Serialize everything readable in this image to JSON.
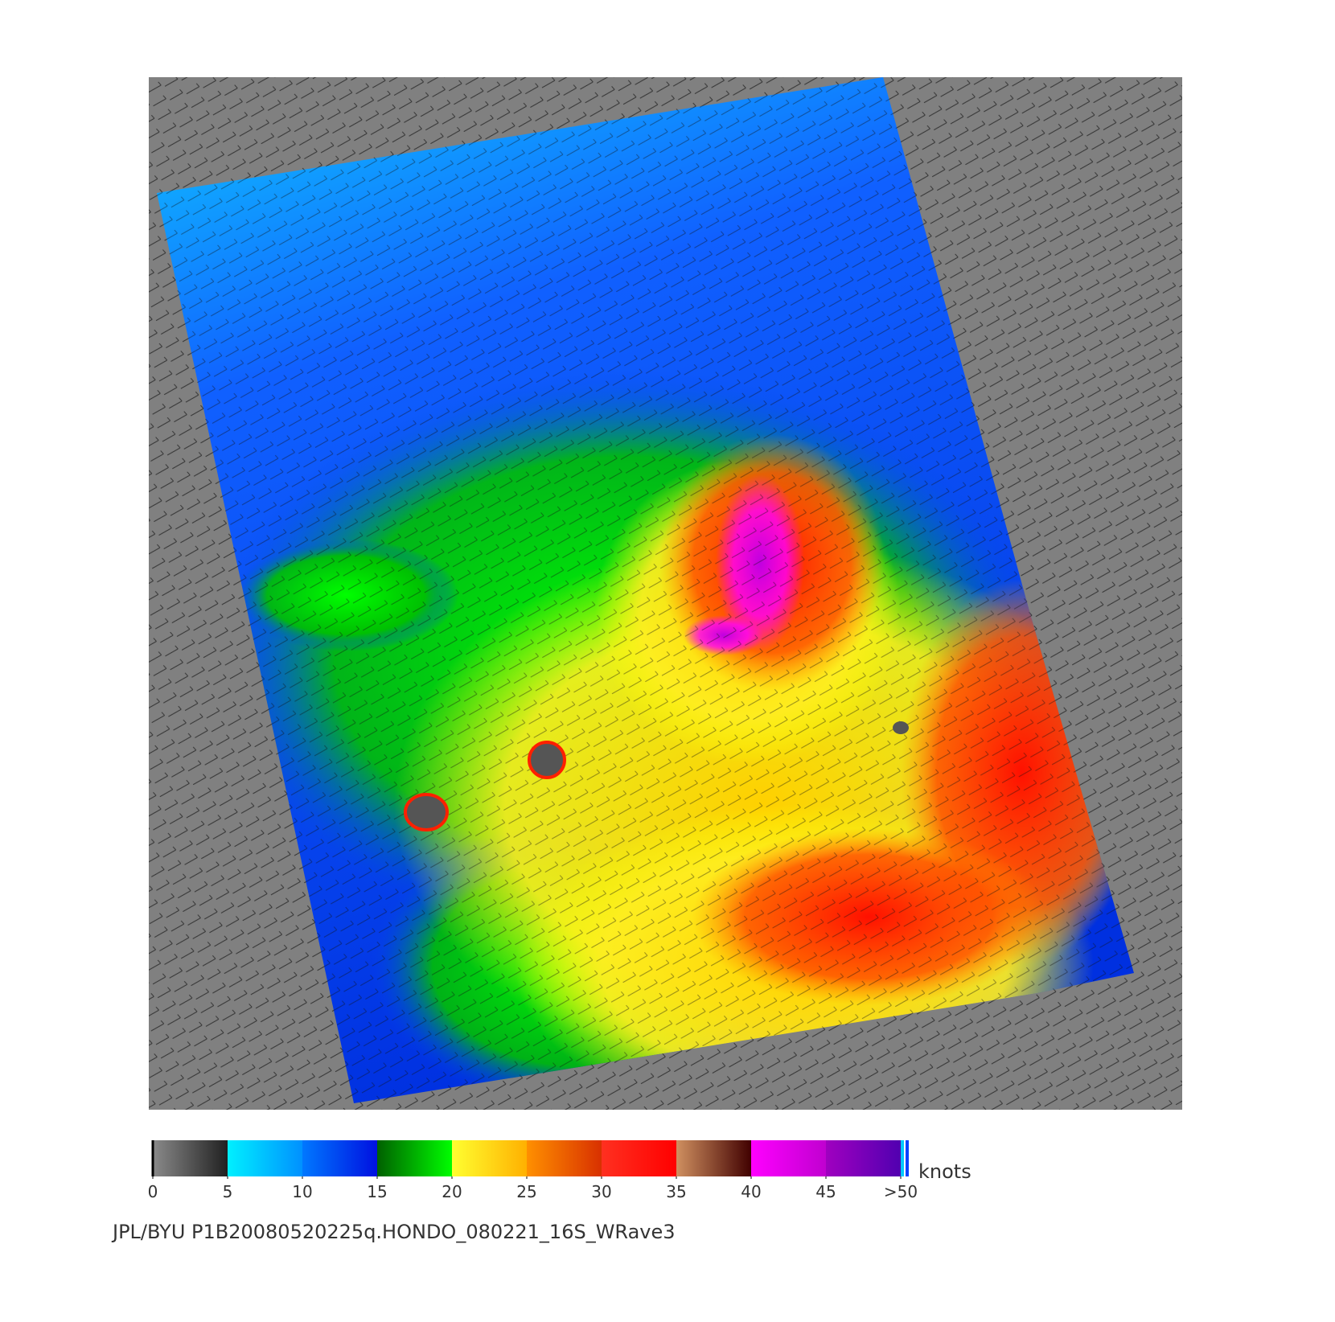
{
  "colorbar": {
    "ticks": [
      0,
      5,
      10,
      15,
      20,
      25,
      30,
      35,
      40,
      45,
      {
        "value": 50,
        "label": ">50"
      }
    ],
    "unit": "knots",
    "bands": [
      {
        "from": "#8a8a8a",
        "to": "#202020"
      },
      {
        "from": "#00f0ff",
        "to": "#0090ff"
      },
      {
        "from": "#0078ff",
        "to": "#0010e0"
      },
      {
        "from": "#006000",
        "to": "#00ff00"
      },
      {
        "from": "#ffff30",
        "to": "#ffb000"
      },
      {
        "from": "#ff9000",
        "to": "#d83000"
      },
      {
        "from": "#ff3020",
        "to": "#ff0000"
      },
      {
        "from": "#d09060",
        "to": "#400000"
      },
      {
        "from": "#ff00ff",
        "to": "#c000d0"
      },
      {
        "from": "#a000c0",
        "to": "#5000b0"
      }
    ]
  },
  "footer": "JPL/BYU  P1B20080520225q.HONDO_080221_16S_WRave3"
}
